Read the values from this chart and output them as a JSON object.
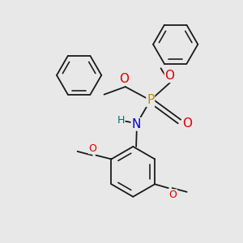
{
  "bg_color": "#e8e8e8",
  "bond_color": "#1a1a1a",
  "bond_lw": 1.3,
  "atom_colors": {
    "P": "#cc8800",
    "O": "#dd0000",
    "N": "#0000cc",
    "H": "#007070",
    "C": "#1a1a1a"
  },
  "fs_large": 11,
  "fs_small": 9,
  "xlim": [
    -2.5,
    3.0
  ],
  "ylim": [
    -3.5,
    2.8
  ]
}
